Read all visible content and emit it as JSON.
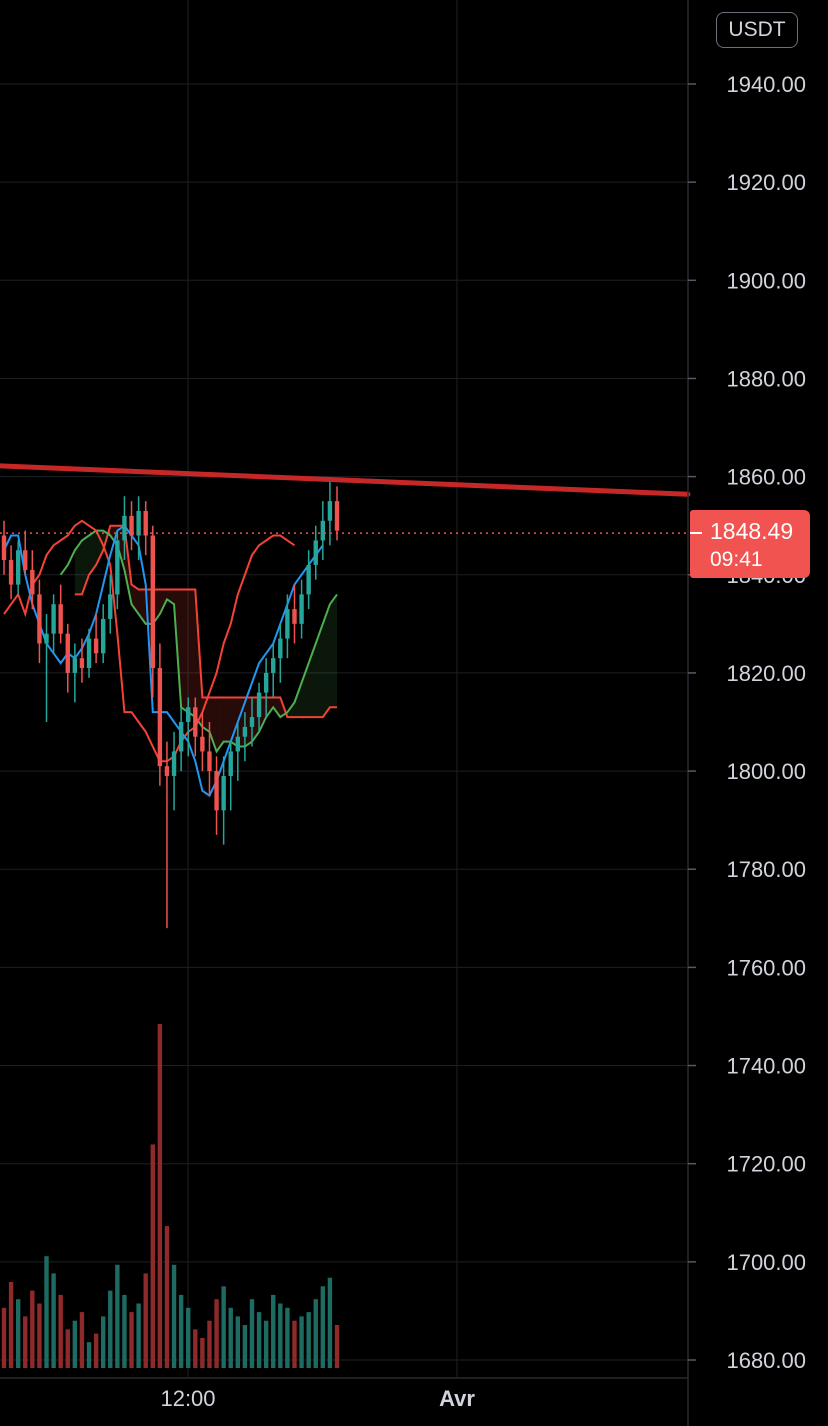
{
  "header": {
    "currency": "USDT"
  },
  "price_tag": {
    "price": "1848.49",
    "countdown": "09:41"
  },
  "colors": {
    "up": "#26a69a",
    "down": "#ef5350",
    "base_line": "#2196f3",
    "conversion_line": "#f44336",
    "span_a": "#4caf50",
    "span_b": "#f44336",
    "resistance": "#c62828",
    "grid": "#1e1f24"
  },
  "chart_data": {
    "type": "candlestick",
    "y_axis": {
      "min": 1680,
      "max": 1940,
      "step": 20,
      "tick_labels": [
        "1940.00",
        "1920.00",
        "1900.00",
        "1880.00",
        "1860.00",
        "1840.00",
        "1820.00",
        "1800.00",
        "1780.00",
        "1760.00",
        "1740.00",
        "1720.00",
        "1700.00",
        "1680.00"
      ]
    },
    "x_axis": {
      "tick_labels": [
        "12:00",
        "Avr"
      ]
    },
    "current_price": 1848.49,
    "resistance_line": {
      "start": 1862.2,
      "end": 1856.4
    },
    "candles_ohlc": [
      [
        1848,
        1851,
        1840,
        1843
      ],
      [
        1843,
        1846,
        1835,
        1838
      ],
      [
        1838,
        1847,
        1836,
        1845
      ],
      [
        1845,
        1849,
        1840,
        1841
      ],
      [
        1841,
        1845,
        1833,
        1836
      ],
      [
        1836,
        1839,
        1822,
        1826
      ],
      [
        1826,
        1832,
        1810,
        1828
      ],
      [
        1828,
        1836,
        1824,
        1834
      ],
      [
        1834,
        1838,
        1826,
        1828
      ],
      [
        1828,
        1830,
        1816,
        1820
      ],
      [
        1820,
        1826,
        1814,
        1823
      ],
      [
        1823,
        1827,
        1818,
        1821
      ],
      [
        1821,
        1829,
        1819,
        1827
      ],
      [
        1827,
        1832,
        1822,
        1824
      ],
      [
        1824,
        1834,
        1822,
        1831
      ],
      [
        1831,
        1840,
        1828,
        1836
      ],
      [
        1836,
        1849,
        1833,
        1847
      ],
      [
        1847,
        1856,
        1843,
        1852
      ],
      [
        1852,
        1855,
        1845,
        1848
      ],
      [
        1848,
        1856,
        1843,
        1853
      ],
      [
        1853,
        1855,
        1844,
        1848
      ],
      [
        1848,
        1850,
        1815,
        1821
      ],
      [
        1821,
        1826,
        1797,
        1801
      ],
      [
        1801,
        1806,
        1768,
        1799
      ],
      [
        1799,
        1808,
        1792,
        1804
      ],
      [
        1804,
        1813,
        1800,
        1810
      ],
      [
        1810,
        1815,
        1803,
        1813
      ],
      [
        1813,
        1815,
        1803,
        1807
      ],
      [
        1807,
        1812,
        1800,
        1804
      ],
      [
        1804,
        1810,
        1795,
        1800
      ],
      [
        1800,
        1803,
        1787,
        1792
      ],
      [
        1792,
        1803,
        1785,
        1799
      ],
      [
        1799,
        1806,
        1792,
        1804
      ],
      [
        1804,
        1810,
        1798,
        1807
      ],
      [
        1807,
        1812,
        1802,
        1809
      ],
      [
        1809,
        1815,
        1805,
        1811
      ],
      [
        1811,
        1818,
        1808,
        1816
      ],
      [
        1816,
        1823,
        1811,
        1820
      ],
      [
        1820,
        1826,
        1815,
        1823
      ],
      [
        1823,
        1830,
        1818,
        1827
      ],
      [
        1827,
        1836,
        1823,
        1833
      ],
      [
        1833,
        1838,
        1826,
        1830
      ],
      [
        1830,
        1839,
        1827,
        1836
      ],
      [
        1836,
        1845,
        1833,
        1842
      ],
      [
        1842,
        1850,
        1839,
        1847
      ],
      [
        1847,
        1855,
        1843,
        1851
      ],
      [
        1851,
        1859,
        1846,
        1855
      ],
      [
        1855,
        1858,
        1847,
        1849
      ]
    ],
    "volume": [
      14,
      20,
      16,
      12,
      18,
      15,
      26,
      22,
      17,
      9,
      11,
      13,
      6,
      8,
      12,
      18,
      24,
      17,
      13,
      15,
      22,
      52,
      80,
      33,
      24,
      17,
      14,
      9,
      7,
      11,
      16,
      19,
      14,
      12,
      10,
      16,
      13,
      11,
      17,
      15,
      14,
      11,
      12,
      13,
      16,
      19,
      21,
      10
    ],
    "ichimoku": {
      "base_line": [
        1845,
        1848,
        1848,
        1840,
        1834,
        1830,
        1826,
        1824,
        1822,
        1824,
        1823,
        1825,
        1828,
        1832,
        1838,
        1844,
        1849,
        1850,
        1848,
        1846,
        1838,
        1812,
        1812,
        1812,
        1810,
        1808,
        1806,
        1802,
        1796,
        1795,
        1798,
        1802,
        1806,
        1810,
        1814,
        1818,
        1822,
        1824,
        1826,
        1830,
        1834,
        1838,
        1840,
        1842,
        1844,
        1846
      ],
      "conversion_line": [
        1832,
        1834,
        1836,
        1832,
        1838,
        1840,
        1844,
        1846,
        1847,
        1848,
        1850,
        1851,
        1850,
        1849,
        1846,
        1842,
        1828,
        1812,
        1812,
        1810,
        1808,
        1805,
        1802,
        1802,
        1803,
        1806,
        1808,
        1809,
        1812,
        1816,
        1820,
        1826,
        1830,
        1836,
        1840,
        1844,
        1846,
        1847,
        1848,
        1848,
        1847,
        1846
      ],
      "span_a": [
        1840,
        1842,
        1845,
        1847,
        1848,
        1849,
        1849,
        1848,
        1846,
        1841,
        1834,
        1832,
        1830,
        1830,
        1832,
        1835,
        1834,
        1813,
        1812,
        1811,
        1809,
        1808,
        1804,
        1806,
        1806,
        1805,
        1805,
        1806,
        1808,
        1811,
        1813,
        1811,
        1812,
        1814,
        1818,
        1822,
        1826,
        1830,
        1834,
        1836
      ],
      "span_b": [
        1836,
        1836,
        1840,
        1842,
        1845,
        1850,
        1850,
        1850,
        1838,
        1837,
        1837,
        1837,
        1837,
        1837,
        1837,
        1837,
        1837,
        1837,
        1815,
        1815,
        1815,
        1815,
        1815,
        1815,
        1815,
        1815,
        1815,
        1815,
        1815,
        1815,
        1811,
        1811,
        1811,
        1811,
        1811,
        1811,
        1813,
        1813
      ]
    }
  }
}
